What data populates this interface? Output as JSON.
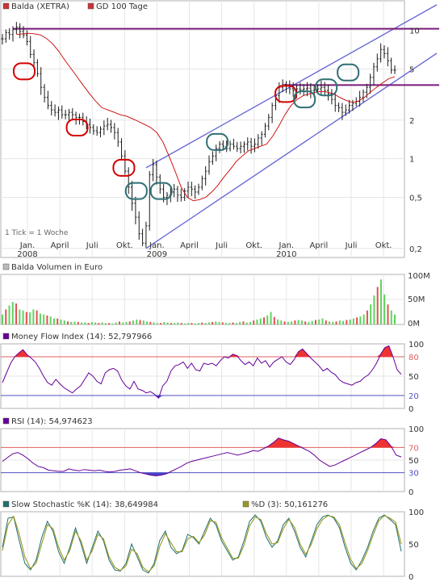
{
  "colors": {
    "background": "#ffffff",
    "grid": "#e6e6e6",
    "frame": "#b0b0b0",
    "price": "#1a1a1a",
    "sma": "#cc0000",
    "channel": "#6b6bd8",
    "resistance": "#7a1a7a",
    "circle_red": "#d40000",
    "circle_teal": "#2e6f75",
    "vol_up": "#5fd35f",
    "vol_down": "#e05050",
    "indicator": "#660099",
    "ref_red": "#e06060",
    "ref_blue": "#5050c0",
    "fill_red": "#ee3333",
    "fill_blue": "#4444cc",
    "stoch_k": "#1f6f6f",
    "stoch_d": "#999922"
  },
  "chart_data": [
    {
      "type": "line",
      "id": "price",
      "legend": [
        {
          "name": "Balda (XETRA)",
          "color": "#cc3333"
        },
        {
          "name": "GD 100 Tage",
          "color": "#cc3333"
        }
      ],
      "note": "1 Tick = 1 Woche",
      "y_scale": "log",
      "ylim": [
        0.17,
        17
      ],
      "y_ticks": [
        {
          "value": 0.2,
          "label": "0,2"
        },
        {
          "value": 0.5,
          "label": "0,5"
        },
        {
          "value": 1,
          "label": "1"
        },
        {
          "value": 2,
          "label": "2"
        },
        {
          "value": 5,
          "label": "5"
        },
        {
          "value": 10,
          "label": "10"
        }
      ],
      "x_month_labels": [
        "Jan.",
        "April",
        "Juli",
        "Okt.",
        "Jan.",
        "April",
        "Juli",
        "Okt.",
        "Jan.",
        "April",
        "Juli",
        "Okt."
      ],
      "x_year_labels": [
        "2008",
        "2009",
        "2010"
      ],
      "weekly_close": [
        8.6,
        9.6,
        9.3,
        10.2,
        10.6,
        9.8,
        9.2,
        8.2,
        6.5,
        5.6,
        4.6,
        3.6,
        3.0,
        2.6,
        2.4,
        2.3,
        2.4,
        2.2,
        2.2,
        2.3,
        2.2,
        2.1,
        2.1,
        1.95,
        1.85,
        1.75,
        1.65,
        1.6,
        1.7,
        1.8,
        1.85,
        1.75,
        1.6,
        1.35,
        1.05,
        0.8,
        0.6,
        0.45,
        0.35,
        0.26,
        0.22,
        0.3,
        0.75,
        0.9,
        0.72,
        0.58,
        0.5,
        0.52,
        0.55,
        0.58,
        0.52,
        0.5,
        0.56,
        0.6,
        0.58,
        0.55,
        0.6,
        0.7,
        0.8,
        0.95,
        1.05,
        1.2,
        1.3,
        1.25,
        1.2,
        1.3,
        1.25,
        1.2,
        1.25,
        1.3,
        1.35,
        1.25,
        1.3,
        1.45,
        1.55,
        1.8,
        2.1,
        2.6,
        3.1,
        3.6,
        3.8,
        3.7,
        3.5,
        3.4,
        3.5,
        3.45,
        3.5,
        3.55,
        3.4,
        3.45,
        3.5,
        3.6,
        3.4,
        3.2,
        2.9,
        2.6,
        2.5,
        2.3,
        2.4,
        2.6,
        2.7,
        2.8,
        3.0,
        3.3,
        3.6,
        4.3,
        5.2,
        6.0,
        7.1,
        6.6,
        5.8,
        4.9,
        4.9
      ],
      "sma_values": [
        9.3,
        9.4,
        9.5,
        9.4,
        9.2,
        8.6,
        7.8,
        6.8,
        5.8,
        5.0,
        4.3,
        3.7,
        3.2,
        2.8,
        2.5,
        2.4,
        2.3,
        2.2,
        2.15,
        2.05,
        1.95,
        1.85,
        1.75,
        1.6,
        1.35,
        1.05,
        0.8,
        0.6,
        0.5,
        0.47,
        0.48,
        0.5,
        0.55,
        0.62,
        0.72,
        0.82,
        0.95,
        1.05,
        1.15,
        1.2,
        1.25,
        1.3,
        1.5,
        1.8,
        2.2,
        2.6,
        2.9,
        3.1,
        3.2,
        3.3,
        3.35,
        3.3,
        3.2,
        3.0,
        2.85,
        2.75,
        2.8,
        3.0,
        3.3,
        3.6,
        3.9,
        4.2,
        4.35
      ],
      "annotations": {
        "resistance_lines": [
          {
            "label": "resistance-top",
            "y": 10.3
          },
          {
            "label": "resistance-mid",
            "y": 3.75
          }
        ],
        "uptrend_channel": {
          "lower": [
            [
              0.2,
              41
            ],
            [
              4.0,
              112
            ]
          ],
          "upper": [
            [
              0.85,
              41
            ],
            [
              17,
              126
            ]
          ]
        }
      }
    },
    {
      "type": "bar",
      "id": "volume",
      "title": "Balda Volumen in Euro",
      "y_ticks_labels": [
        "100M",
        "50M",
        "0M"
      ],
      "ylim": [
        0,
        100
      ],
      "unit": "M",
      "values": [
        20,
        30,
        38,
        45,
        42,
        30,
        28,
        25,
        24,
        30,
        28,
        22,
        20,
        18,
        16,
        12,
        12,
        10,
        8,
        6,
        5,
        6,
        5,
        4,
        4,
        3,
        5,
        4,
        3,
        4,
        3,
        3,
        2,
        4,
        6,
        4,
        5,
        6,
        8,
        10,
        9,
        8,
        6,
        5,
        4,
        3,
        3,
        5,
        4,
        3,
        3,
        4,
        3,
        2,
        3,
        3,
        2,
        3,
        4,
        3,
        4,
        5,
        6,
        5,
        4,
        3,
        3,
        4,
        3,
        5,
        6,
        4,
        5,
        8,
        10,
        12,
        14,
        18,
        25,
        15,
        10,
        8,
        6,
        5,
        6,
        8,
        9,
        8,
        6,
        5,
        7,
        9,
        10,
        12,
        8,
        6,
        5,
        6,
        8,
        7,
        9,
        10,
        12,
        14,
        16,
        20,
        28,
        40,
        58,
        75,
        90,
        60,
        40,
        28,
        20
      ],
      "direction_note": "green on up-week, red on down-week"
    },
    {
      "type": "line",
      "id": "mfi",
      "title": "Money Flow Index (14): 52,797966",
      "y_ticks": [
        {
          "value": 100,
          "label": "100"
        },
        {
          "value": 80,
          "label": "80"
        },
        {
          "value": 50,
          "label": "50"
        },
        {
          "value": 20,
          "label": "20"
        },
        {
          "value": 0,
          "label": "0"
        }
      ],
      "ylim": [
        0,
        100
      ],
      "upper_ref": 80,
      "lower_ref": 20,
      "values": [
        40,
        55,
        70,
        80,
        86,
        91,
        83,
        78,
        72,
        62,
        50,
        40,
        36,
        45,
        38,
        32,
        28,
        24,
        30,
        35,
        45,
        55,
        50,
        42,
        38,
        55,
        60,
        62,
        58,
        44,
        35,
        30,
        42,
        30,
        28,
        24,
        26,
        22,
        16,
        35,
        42,
        58,
        66,
        68,
        72,
        62,
        70,
        60,
        58,
        70,
        68,
        70,
        66,
        74,
        80,
        78,
        84,
        82,
        74,
        68,
        72,
        66,
        78,
        70,
        74,
        64,
        72,
        76,
        80,
        72,
        68,
        76,
        88,
        92,
        85,
        78,
        72,
        66,
        58,
        62,
        56,
        52,
        44,
        40,
        38,
        36,
        40,
        42,
        48,
        52,
        60,
        70,
        84,
        94,
        97,
        80,
        60,
        52.8
      ]
    },
    {
      "type": "line",
      "id": "rsi",
      "title": "RSI (14): 54,974623",
      "y_ticks": [
        {
          "value": 100,
          "label": "100"
        },
        {
          "value": 70,
          "label": "70"
        },
        {
          "value": 50,
          "label": "50"
        },
        {
          "value": 30,
          "label": "30"
        },
        {
          "value": 0,
          "label": "0"
        }
      ],
      "ylim": [
        0,
        100
      ],
      "upper_ref": 70,
      "lower_ref": 30,
      "values": [
        48,
        54,
        60,
        62,
        58,
        52,
        45,
        40,
        38,
        34,
        33,
        32,
        32,
        36,
        34,
        33,
        35,
        34,
        33,
        34,
        32,
        31,
        32,
        34,
        35,
        36,
        33,
        30,
        28,
        26,
        25,
        26,
        28,
        32,
        36,
        40,
        45,
        48,
        50,
        52,
        54,
        56,
        58,
        60,
        62,
        60,
        58,
        60,
        62,
        65,
        64,
        68,
        72,
        78,
        85,
        82,
        80,
        76,
        72,
        68,
        64,
        58,
        50,
        45,
        40,
        42,
        46,
        50,
        54,
        58,
        62,
        66,
        70,
        76,
        84,
        82,
        72,
        58,
        55
      ]
    },
    {
      "type": "line",
      "id": "stochastic",
      "series_labels": [
        {
          "name": "Slow Stochastic %K (14): 38,649984",
          "color": "#1f6f6f"
        },
        {
          "name": "%D (3): 50,161276",
          "color": "#999922"
        }
      ],
      "y_ticks": [
        {
          "value": 100,
          "label": "100"
        },
        {
          "value": 50,
          "label": "50"
        },
        {
          "value": 0,
          "label": "0"
        }
      ],
      "ylim": [
        0,
        100
      ],
      "k_values": [
        45,
        90,
        92,
        55,
        20,
        10,
        25,
        60,
        85,
        70,
        38,
        20,
        45,
        75,
        50,
        20,
        45,
        70,
        55,
        25,
        10,
        8,
        20,
        50,
        30,
        10,
        5,
        20,
        55,
        70,
        45,
        35,
        40,
        65,
        60,
        50,
        70,
        90,
        80,
        55,
        40,
        25,
        30,
        55,
        85,
        95,
        85,
        60,
        45,
        55,
        80,
        90,
        70,
        45,
        30,
        55,
        80,
        92,
        95,
        90,
        75,
        45,
        20,
        10,
        25,
        45,
        70,
        90,
        95,
        88,
        80,
        38.6
      ],
      "d_values": [
        40,
        80,
        93,
        65,
        30,
        12,
        20,
        50,
        80,
        74,
        45,
        25,
        40,
        70,
        55,
        25,
        40,
        65,
        58,
        30,
        14,
        9,
        16,
        42,
        35,
        14,
        7,
        16,
        46,
        66,
        52,
        38,
        38,
        58,
        62,
        52,
        64,
        86,
        84,
        60,
        44,
        28,
        28,
        48,
        78,
        92,
        88,
        66,
        50,
        52,
        74,
        88,
        76,
        50,
        34,
        50,
        74,
        88,
        94,
        92,
        80,
        52,
        26,
        12,
        20,
        40,
        64,
        86,
        94,
        90,
        84,
        50.2
      ]
    }
  ]
}
